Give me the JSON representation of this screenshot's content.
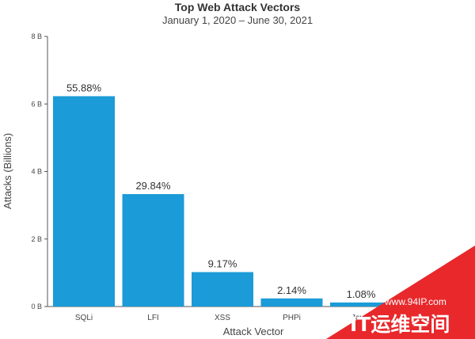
{
  "chart_data": {
    "type": "bar",
    "title": "Top Web Attack Vectors",
    "subtitle": "January 1, 2020 – June 30, 2021",
    "xlabel": "Attack Vector",
    "ylabel": "Attacks (Billions)",
    "categories": [
      "SQLi",
      "LFI",
      "XSS",
      "PHPi",
      "JavaI"
    ],
    "values": [
      6.23,
      3.33,
      1.02,
      0.24,
      0.12
    ],
    "data_labels": [
      "55.88%",
      "29.84%",
      "9.17%",
      "2.14%",
      "1.08%"
    ],
    "ylim": [
      0,
      8
    ],
    "yticks": [
      0,
      2,
      4,
      6,
      8
    ],
    "ytick_labels": [
      "0 B",
      "2 B",
      "4 B",
      "6 B",
      "8 B"
    ],
    "bar_color": "#1B9BD7",
    "grid": false
  },
  "watermark": {
    "url": "www.94IP.com",
    "text": "IT运维空间",
    "color": "#E8282B"
  }
}
